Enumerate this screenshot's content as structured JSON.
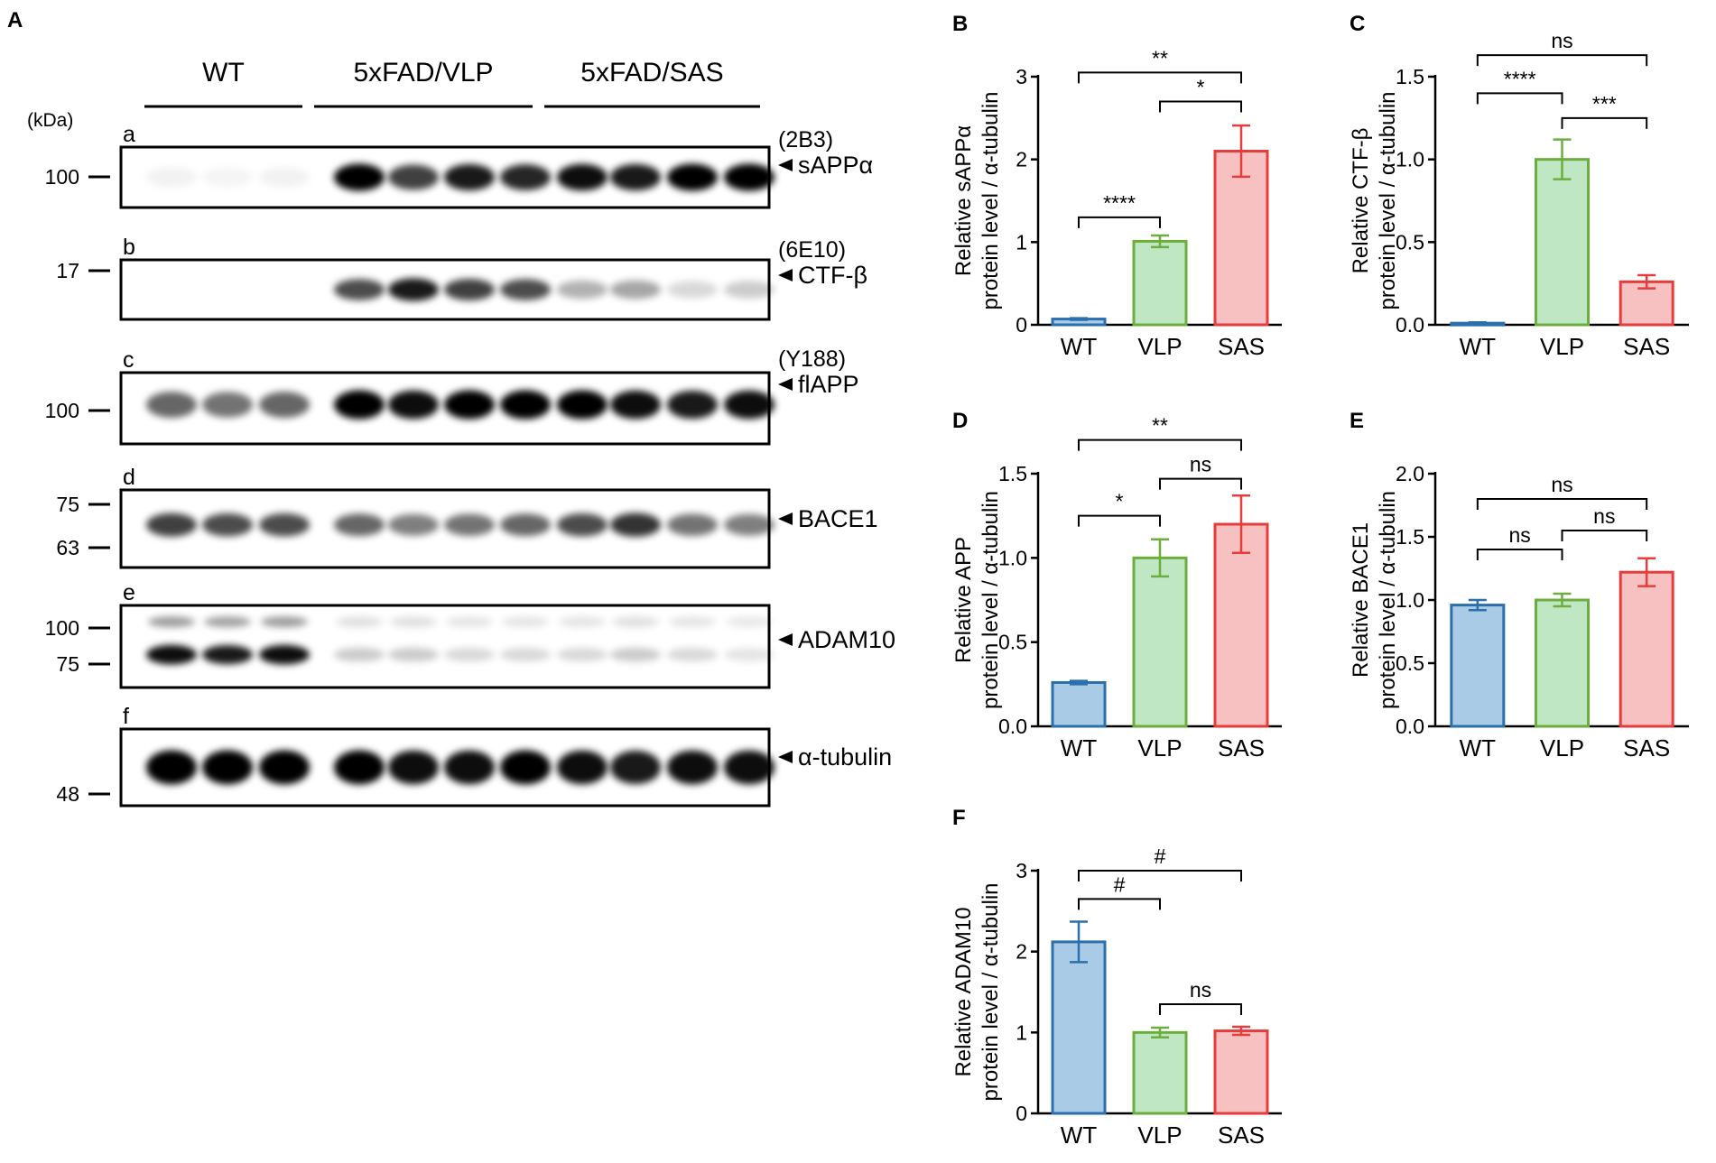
{
  "western_blot": {
    "panel_label": "A",
    "kda_label": "(kDa)",
    "groups": [
      {
        "label": "WT",
        "lanes": 3
      },
      {
        "label": "5xFAD/VLP",
        "lanes": 4
      },
      {
        "label": "5xFAD/SAS",
        "lanes": 4
      }
    ],
    "blots": [
      {
        "letter": "a",
        "antibody": "(2B3)",
        "target": "sAPPα",
        "markers": [
          "100"
        ],
        "wt_intensity": [
          0.05,
          0.04,
          0.05
        ],
        "vlp_intensity": [
          1.0,
          0.75,
          0.9,
          0.85
        ],
        "sas_intensity": [
          0.95,
          0.9,
          1.0,
          1.0
        ]
      },
      {
        "letter": "b",
        "antibody": "(6E10)",
        "target": "CTF-β",
        "markers": [
          "17"
        ],
        "wt_intensity": [
          0.0,
          0.0,
          0.0
        ],
        "vlp_intensity": [
          0.7,
          0.9,
          0.75,
          0.7
        ],
        "sas_intensity": [
          0.3,
          0.35,
          0.15,
          0.2
        ]
      },
      {
        "letter": "c",
        "antibody": "(Y188)",
        "target": "flAPP",
        "markers": [
          "100"
        ],
        "wt_intensity": [
          0.6,
          0.55,
          0.6
        ],
        "vlp_intensity": [
          1.0,
          0.95,
          1.0,
          1.0
        ],
        "sas_intensity": [
          1.0,
          0.95,
          0.9,
          0.95
        ]
      },
      {
        "letter": "d",
        "antibody": "",
        "target": "BACE1",
        "markers": [
          "75",
          "63"
        ],
        "wt_intensity": [
          0.75,
          0.7,
          0.7
        ],
        "vlp_intensity": [
          0.6,
          0.5,
          0.55,
          0.6
        ],
        "sas_intensity": [
          0.7,
          0.8,
          0.55,
          0.5
        ]
      },
      {
        "letter": "e",
        "antibody": "",
        "target": "ADAM10",
        "markers": [
          "100",
          "75"
        ],
        "wt_intensity": [
          0.95,
          0.9,
          0.95
        ],
        "vlp_intensity": [
          0.2,
          0.2,
          0.15,
          0.15
        ],
        "sas_intensity": [
          0.15,
          0.2,
          0.15,
          0.1
        ]
      },
      {
        "letter": "f",
        "antibody": "",
        "target": "α-tubulin",
        "markers": [
          "48"
        ],
        "wt_intensity": [
          1.0,
          1.0,
          1.0
        ],
        "vlp_intensity": [
          1.0,
          0.95,
          0.95,
          1.0
        ],
        "sas_intensity": [
          0.95,
          0.9,
          0.95,
          0.95
        ]
      }
    ]
  },
  "colors": {
    "WT": {
      "stroke": "#2b6fad",
      "fill": "#a9cbe6"
    },
    "VLP": {
      "stroke": "#6cae3e",
      "fill": "#bfe7c3"
    },
    "SAS": {
      "stroke": "#e63c3c",
      "fill": "#f7c1c1"
    }
  },
  "chart_data": [
    {
      "panel": "B",
      "type": "bar",
      "categories": [
        "WT",
        "VLP",
        "SAS"
      ],
      "values": [
        0.07,
        1.01,
        2.1
      ],
      "errors": [
        0.01,
        0.07,
        0.31
      ],
      "ylabel": [
        "Relative sAPPα",
        "protein level / α-tubulin"
      ],
      "ylim": [
        0,
        3
      ],
      "yticks": [
        "0",
        "1",
        "2",
        "3"
      ],
      "significance": [
        {
          "from": 0,
          "to": 1,
          "label": "****",
          "level": 1.3
        },
        {
          "from": 1,
          "to": 2,
          "label": "*",
          "level": 2.7
        },
        {
          "from": 0,
          "to": 2,
          "label": "**",
          "level": 3.05
        }
      ]
    },
    {
      "panel": "C",
      "type": "bar",
      "categories": [
        "WT",
        "VLP",
        "SAS"
      ],
      "values": [
        0.01,
        1.0,
        0.26
      ],
      "errors": [
        0.005,
        0.12,
        0.04
      ],
      "ylabel": [
        "Relative CTF-β",
        "protein level / α-tubulin"
      ],
      "ylim": [
        0,
        1.5
      ],
      "yticks": [
        "0.0",
        "0.5",
        "1.0",
        "1.5"
      ],
      "significance": [
        {
          "from": 0,
          "to": 1,
          "label": "****",
          "level": 1.4
        },
        {
          "from": 1,
          "to": 2,
          "label": "***",
          "level": 1.25
        },
        {
          "from": 0,
          "to": 2,
          "label": "ns",
          "level": 1.63
        }
      ]
    },
    {
      "panel": "D",
      "type": "bar",
      "categories": [
        "WT",
        "VLP",
        "SAS"
      ],
      "values": [
        0.26,
        1.0,
        1.2
      ],
      "errors": [
        0.01,
        0.11,
        0.17
      ],
      "ylabel": [
        "Relative APP",
        "protein level / α-tubulin"
      ],
      "ylim": [
        0,
        1.5
      ],
      "yticks": [
        "0.0",
        "0.5",
        "1.0",
        "1.5"
      ],
      "significance": [
        {
          "from": 0,
          "to": 1,
          "label": "*",
          "level": 1.25
        },
        {
          "from": 1,
          "to": 2,
          "label": "ns",
          "level": 1.47
        },
        {
          "from": 0,
          "to": 2,
          "label": "**",
          "level": 1.7
        }
      ]
    },
    {
      "panel": "E",
      "type": "bar",
      "categories": [
        "WT",
        "VLP",
        "SAS"
      ],
      "values": [
        0.96,
        1.0,
        1.22
      ],
      "errors": [
        0.04,
        0.05,
        0.11
      ],
      "ylabel": [
        "Relative BACE1",
        "protein level / α-tubulin"
      ],
      "ylim": [
        0,
        2.0
      ],
      "yticks": [
        "0.0",
        "0.5",
        "1.0",
        "1.5",
        "2.0"
      ],
      "significance": [
        {
          "from": 0,
          "to": 1,
          "label": "ns",
          "level": 1.4
        },
        {
          "from": 1,
          "to": 2,
          "label": "ns",
          "level": 1.55
        },
        {
          "from": 0,
          "to": 2,
          "label": "ns",
          "level": 1.8
        }
      ]
    },
    {
      "panel": "F",
      "type": "bar",
      "categories": [
        "WT",
        "VLP",
        "SAS"
      ],
      "values": [
        2.12,
        1.0,
        1.02
      ],
      "errors": [
        0.25,
        0.06,
        0.05
      ],
      "ylabel": [
        "Relative ADAM10",
        "protein level / α-tubulin"
      ],
      "ylim": [
        0,
        3
      ],
      "yticks": [
        "0",
        "1",
        "2",
        "3"
      ],
      "significance": [
        {
          "from": 0,
          "to": 1,
          "label": "#",
          "level": 2.65
        },
        {
          "from": 1,
          "to": 2,
          "label": "ns",
          "level": 1.35
        },
        {
          "from": 0,
          "to": 2,
          "label": "#",
          "level": 3.0
        }
      ]
    }
  ]
}
